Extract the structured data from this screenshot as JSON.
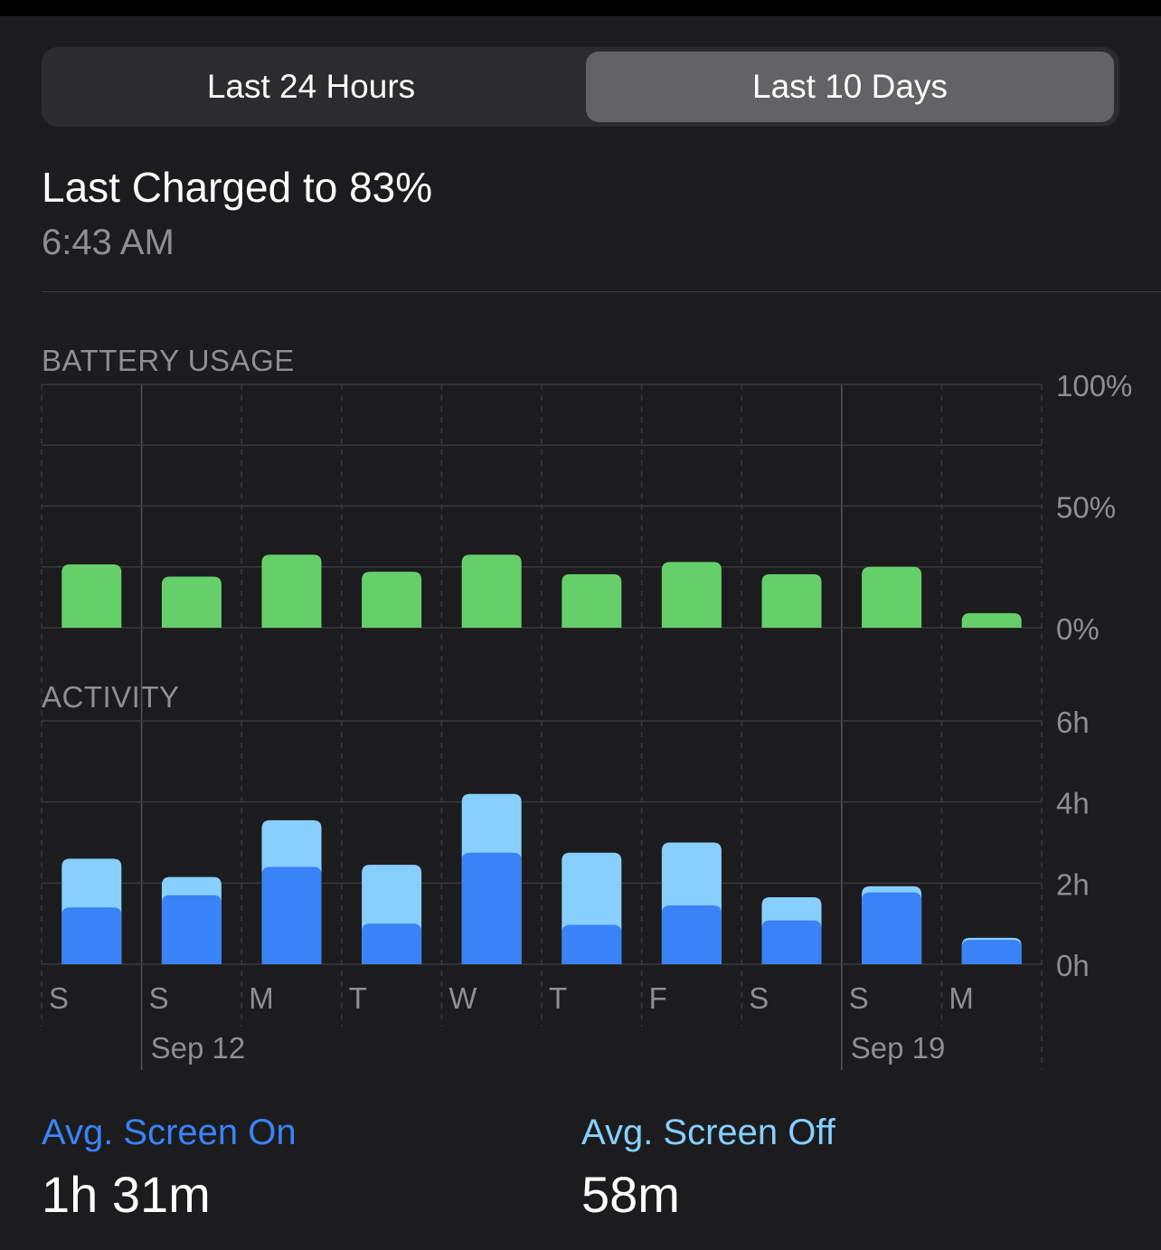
{
  "segmented": {
    "options": [
      "Last 24 Hours",
      "Last 10 Days"
    ],
    "selected": "Last 10 Days"
  },
  "last_charged": {
    "title": "Last Charged to 83%",
    "time": "6:43 AM"
  },
  "battery_usage": {
    "label": "BATTERY USAGE"
  },
  "activity": {
    "label": "ACTIVITY"
  },
  "stats": {
    "screen_on_label": "Avg. Screen On",
    "screen_on_value": "1h 31m",
    "screen_off_label": "Avg. Screen Off",
    "screen_off_value": "58m"
  },
  "colors": {
    "battery_bar": "#65d06a",
    "screen_on": "#3a82f7",
    "screen_off": "#86cffe",
    "screen_on_label": "#3a82f7",
    "screen_off_label": "#86cffe"
  },
  "chart_data": [
    {
      "type": "bar",
      "title": "BATTERY USAGE",
      "categories": [
        "S",
        "S",
        "M",
        "T",
        "W",
        "T",
        "F",
        "S",
        "S",
        "M"
      ],
      "date_labels": [
        "",
        "Sep 12",
        "",
        "",
        "",
        "",
        "",
        "",
        "Sep 19",
        ""
      ],
      "values": [
        26,
        21,
        30,
        23,
        30,
        22,
        27,
        22,
        25,
        6
      ],
      "ylim": [
        0,
        100
      ],
      "yticks": [
        "0%",
        "50%",
        "100%"
      ],
      "grid": true
    },
    {
      "type": "bar",
      "title": "ACTIVITY",
      "categories": [
        "S",
        "S",
        "M",
        "T",
        "W",
        "T",
        "F",
        "S",
        "S",
        "M"
      ],
      "series": [
        {
          "name": "Avg. Screen On",
          "values": [
            1.4,
            1.7,
            2.4,
            1.0,
            2.75,
            0.97,
            1.45,
            1.08,
            1.77,
            0.6
          ]
        },
        {
          "name": "Avg. Screen Off",
          "values": [
            1.2,
            0.45,
            1.15,
            1.45,
            1.45,
            1.78,
            1.55,
            0.57,
            0.15,
            0.05
          ]
        }
      ],
      "stacked": true,
      "ylim": [
        0,
        6
      ],
      "yticks": [
        "0h",
        "2h",
        "4h",
        "6h"
      ],
      "grid": true
    }
  ]
}
